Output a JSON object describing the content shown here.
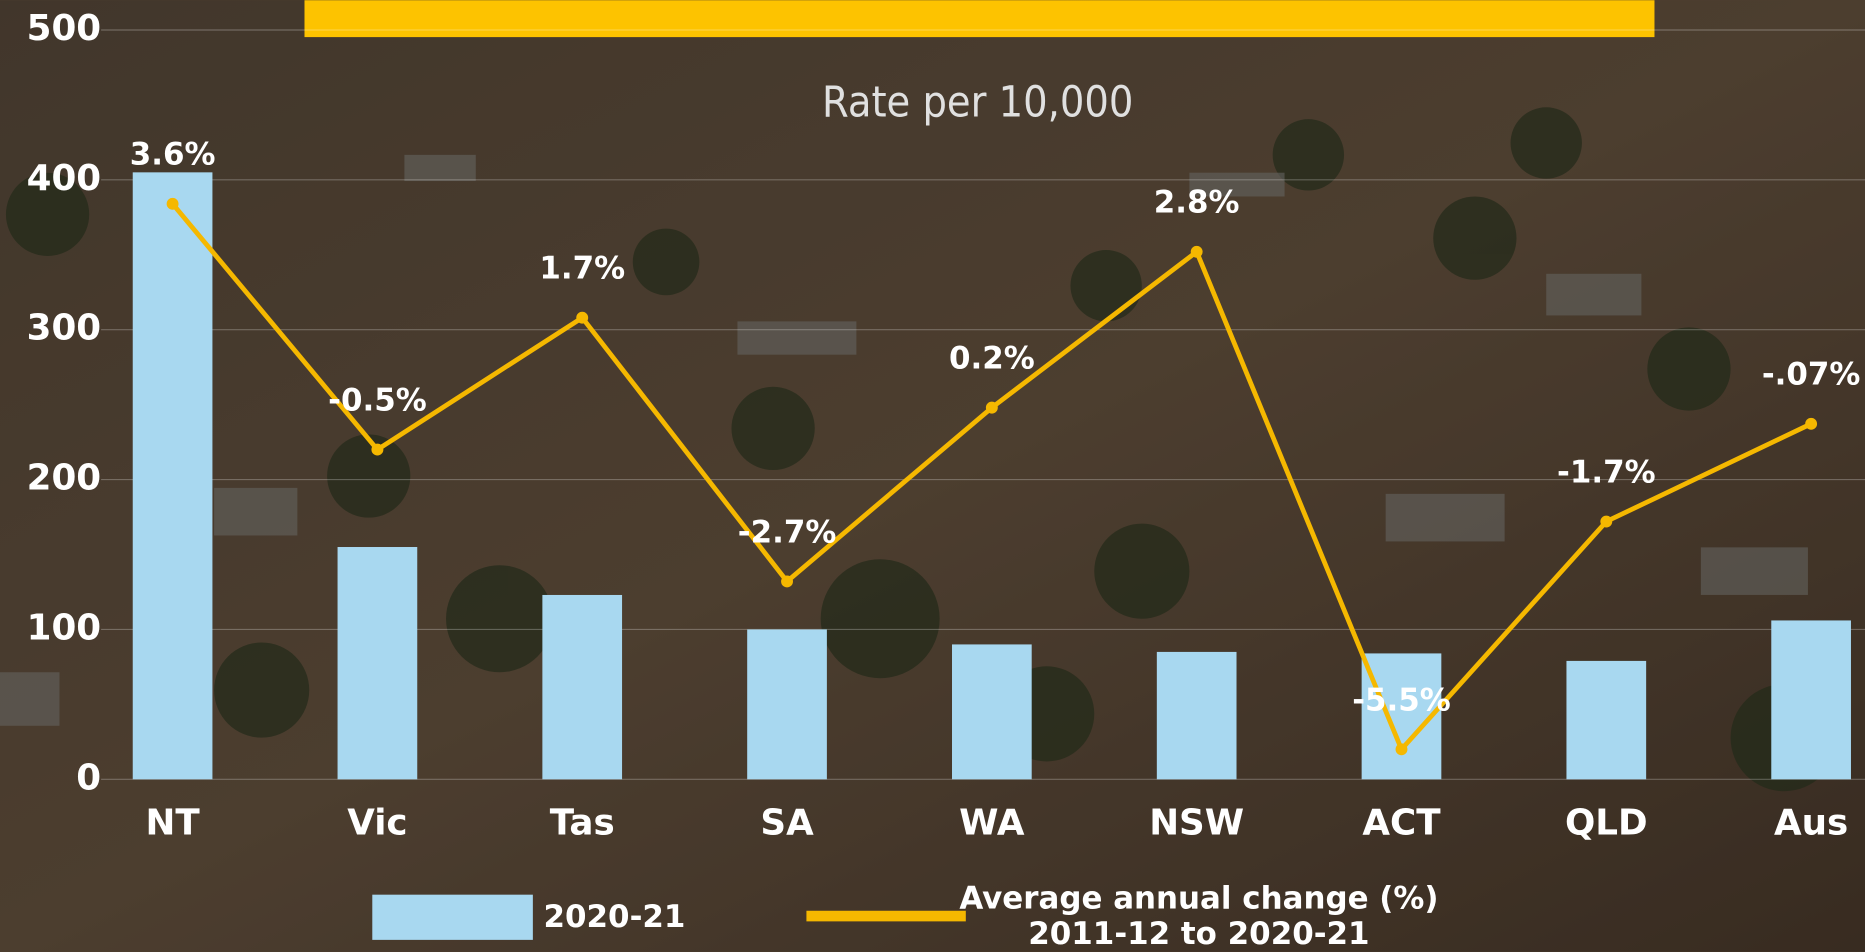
{
  "chart_data": {
    "type": "bar",
    "subtitle": "Rate per 10,000",
    "categories": [
      "NT",
      "Vic",
      "Tas",
      "SA",
      "WA",
      "NSW",
      "ACT",
      "QLD",
      "Aus"
    ],
    "series": [
      {
        "name": "2020-21",
        "type": "bar",
        "color": "#a8d8f0",
        "values": [
          405,
          155,
          123,
          100,
          90,
          85,
          84,
          79,
          106
        ]
      },
      {
        "name": "Average annual change (%)\n2011-12 to 2020-21",
        "type": "line",
        "axis": "y2",
        "color": "#f5b800",
        "values": [
          3.6,
          -0.5,
          1.7,
          -2.7,
          0.2,
          2.8,
          -5.5,
          -1.7,
          -0.07
        ],
        "value_labels": [
          "3.6%",
          "-0.5%",
          "1.7%",
          "-2.7%",
          "0.2%",
          "2.8%",
          "-5.5%",
          "-1.7%",
          "-.07%"
        ]
      }
    ],
    "ylim": [
      0,
      500
    ],
    "yticks": [
      0,
      100,
      200,
      300,
      400,
      500
    ],
    "y2lim": [
      -6,
      6.5
    ],
    "grid": true
  }
}
